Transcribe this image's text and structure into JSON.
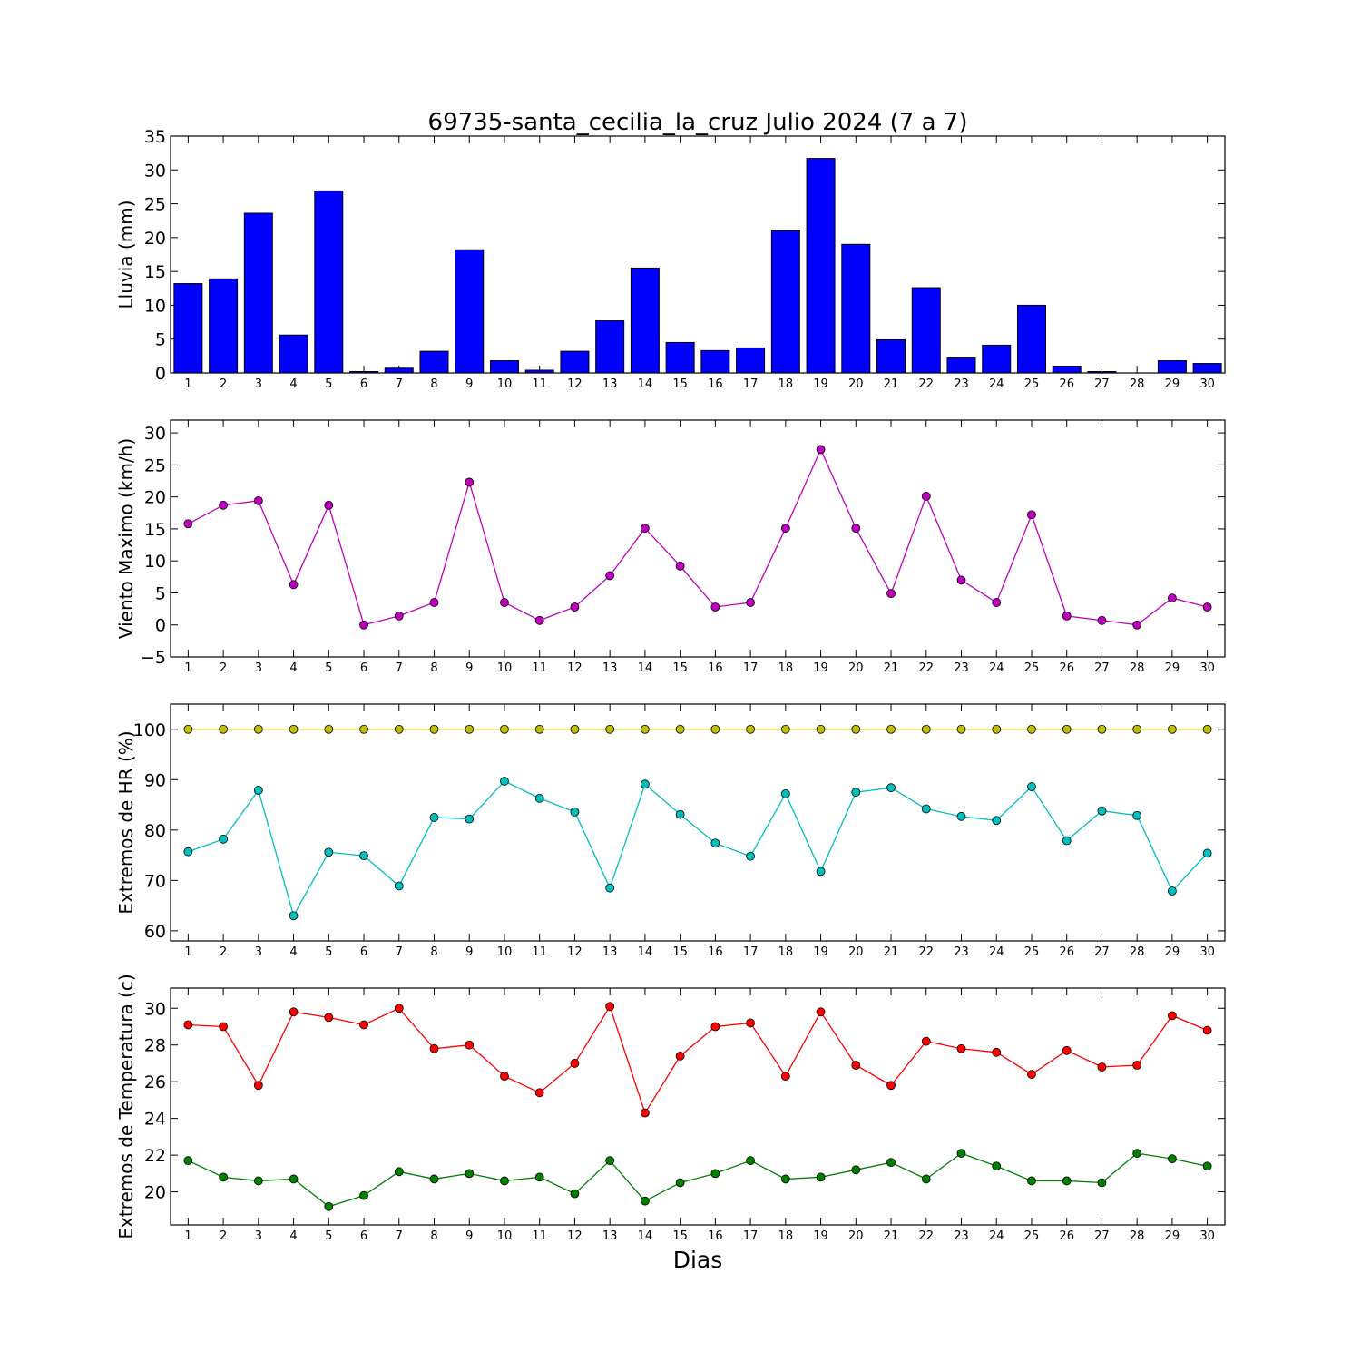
{
  "figure": {
    "title": "69735-santa_cecilia_la_cruz Julio 2024  (7 a 7)",
    "xlabel": "Dias"
  },
  "chart_data": [
    {
      "type": "bar",
      "ylabel": "Lluvia (mm)",
      "xlabel": "",
      "ylim": [
        0,
        35
      ],
      "yticks": [
        0,
        5,
        10,
        15,
        20,
        25,
        30,
        35
      ],
      "x": [
        1,
        2,
        3,
        4,
        5,
        6,
        7,
        8,
        9,
        10,
        11,
        12,
        13,
        14,
        15,
        16,
        17,
        18,
        19,
        20,
        21,
        22,
        23,
        24,
        25,
        26,
        27,
        28,
        29,
        30
      ],
      "values": [
        13.2,
        13.9,
        23.6,
        5.6,
        26.9,
        0.2,
        0.7,
        3.2,
        18.2,
        1.8,
        0.4,
        3.2,
        7.7,
        15.5,
        4.5,
        3.3,
        3.7,
        21.0,
        31.7,
        19.0,
        4.9,
        12.6,
        2.2,
        4.1,
        10.0,
        1.0,
        0.2,
        0.0,
        1.8,
        1.4
      ],
      "colors": {
        "bar": "#0000ff"
      }
    },
    {
      "type": "line",
      "ylabel": "Viento Maximo (km/h)",
      "xlabel": "",
      "ylim": [
        -5,
        32
      ],
      "yticks": [
        -5,
        0,
        5,
        10,
        15,
        20,
        25,
        30
      ],
      "x": [
        1,
        2,
        3,
        4,
        5,
        6,
        7,
        8,
        9,
        10,
        11,
        12,
        13,
        14,
        15,
        16,
        17,
        18,
        19,
        20,
        21,
        22,
        23,
        24,
        25,
        26,
        27,
        28,
        29,
        30
      ],
      "series": [
        {
          "values": [
            15.8,
            18.7,
            19.4,
            6.3,
            18.7,
            0.0,
            1.4,
            3.5,
            22.3,
            3.5,
            0.7,
            2.8,
            7.7,
            15.1,
            9.2,
            2.8,
            3.5,
            15.1,
            27.4,
            15.1,
            4.9,
            20.1,
            7.0,
            3.5,
            17.2,
            1.4,
            0.7,
            0.0,
            4.2,
            2.8
          ],
          "color": "#bf00bf"
        }
      ]
    },
    {
      "type": "line",
      "ylabel": "Extremos de HR (%)",
      "xlabel": "",
      "ylim": [
        58,
        105
      ],
      "yticks": [
        60,
        70,
        80,
        90,
        100
      ],
      "x": [
        1,
        2,
        3,
        4,
        5,
        6,
        7,
        8,
        9,
        10,
        11,
        12,
        13,
        14,
        15,
        16,
        17,
        18,
        19,
        20,
        21,
        22,
        23,
        24,
        25,
        26,
        27,
        28,
        29,
        30
      ],
      "series": [
        {
          "values": [
            100,
            100,
            100,
            100,
            100,
            100,
            100,
            100,
            100,
            100,
            100,
            100,
            100,
            100,
            100,
            100,
            100,
            100,
            100,
            100,
            100,
            100,
            100,
            100,
            100,
            100,
            100,
            100,
            100,
            100
          ],
          "color": "#bfbf00"
        },
        {
          "values": [
            75.7,
            78.2,
            87.9,
            63.0,
            75.6,
            74.9,
            68.9,
            82.5,
            82.2,
            89.7,
            86.3,
            83.6,
            68.5,
            89.1,
            83.1,
            77.4,
            74.8,
            87.2,
            71.8,
            87.5,
            88.4,
            84.2,
            82.7,
            81.9,
            88.6,
            77.9,
            83.8,
            82.9,
            67.9,
            75.4
          ],
          "color": "#00bfbf"
        }
      ]
    },
    {
      "type": "line",
      "ylabel": "Extremos de Temperatura (c)",
      "xlabel": "Dias",
      "ylim": [
        18.2,
        31.1
      ],
      "yticks": [
        20,
        22,
        24,
        26,
        28,
        30
      ],
      "x": [
        1,
        2,
        3,
        4,
        5,
        6,
        7,
        8,
        9,
        10,
        11,
        12,
        13,
        14,
        15,
        16,
        17,
        18,
        19,
        20,
        21,
        22,
        23,
        24,
        25,
        26,
        27,
        28,
        29,
        30
      ],
      "series": [
        {
          "values": [
            29.1,
            29.0,
            25.8,
            29.8,
            29.5,
            29.1,
            30.0,
            27.8,
            28.0,
            26.3,
            25.4,
            27.0,
            30.1,
            24.3,
            27.4,
            29.0,
            29.2,
            26.3,
            29.8,
            26.9,
            25.8,
            28.2,
            27.8,
            27.6,
            26.4,
            27.7,
            26.8,
            26.9,
            29.6,
            28.8
          ],
          "color": "#ff0000"
        },
        {
          "values": [
            21.7,
            20.8,
            20.6,
            20.7,
            19.2,
            19.8,
            21.1,
            20.7,
            21.0,
            20.6,
            20.8,
            19.9,
            21.7,
            19.5,
            20.5,
            21.0,
            21.7,
            20.7,
            20.8,
            21.2,
            21.6,
            20.7,
            22.1,
            21.4,
            20.6,
            20.6,
            20.5,
            22.1,
            21.8,
            21.4
          ],
          "color": "#007f00"
        }
      ]
    }
  ]
}
